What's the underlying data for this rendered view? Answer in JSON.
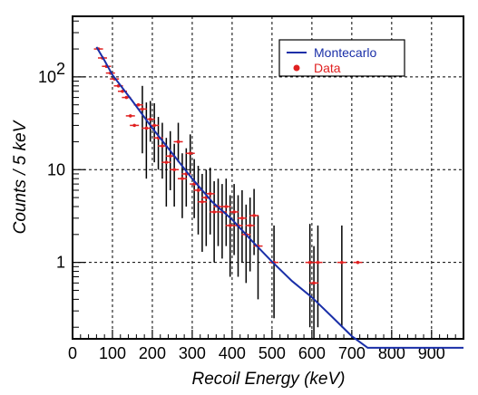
{
  "chart_data": {
    "type": "scatter",
    "xlabel": "Recoil Energy (keV)",
    "ylabel": "Counts / 5 keV",
    "xlim": [
      0,
      980
    ],
    "ylim": [
      0.15,
      450
    ],
    "yscale": "log",
    "grid": true,
    "legend_position": "top-right",
    "xticks": [
      "0",
      "100",
      "200",
      "300",
      "400",
      "500",
      "600",
      "700",
      "800",
      "900"
    ],
    "yticks": [
      {
        "value": 1,
        "label": "1"
      },
      {
        "value": 10,
        "label": "10"
      },
      {
        "value": 100,
        "label": "10",
        "exp": "2"
      }
    ],
    "series": [
      {
        "name": "Montecarlo",
        "kind": "line",
        "color": "#1a2fa8",
        "x": [
          60,
          80,
          100,
          150,
          200,
          250,
          300,
          350,
          400,
          450,
          500,
          550,
          600,
          650,
          700,
          740,
          750,
          980
        ],
        "y": [
          210,
          150,
          105,
          55,
          28,
          15,
          8,
          4.5,
          2.9,
          1.7,
          1.02,
          0.63,
          0.42,
          0.26,
          0.16,
          0.12,
          0.12,
          0.12
        ]
      },
      {
        "name": "Data",
        "kind": "points",
        "color": "#e02020",
        "x": [
          65,
          75,
          85,
          95,
          105,
          115,
          125,
          135,
          145,
          155,
          165,
          175,
          185,
          195,
          205,
          215,
          225,
          235,
          245,
          255,
          265,
          275,
          285,
          295,
          305,
          315,
          325,
          335,
          345,
          355,
          365,
          375,
          385,
          395,
          405,
          415,
          425,
          435,
          445,
          455,
          465,
          505,
          595,
          605,
          615,
          675,
          715
        ],
        "y": [
          200,
          160,
          130,
          110,
          95,
          80,
          70,
          60,
          38,
          30,
          50,
          45,
          28,
          35,
          30,
          22,
          18,
          12,
          14,
          10,
          20,
          8,
          9,
          15,
          7,
          6,
          4.5,
          5,
          5.5,
          3.5,
          4,
          3.5,
          4,
          2.5,
          3.5,
          2.5,
          3,
          2,
          2.5,
          3.2,
          1.5,
          1,
          1,
          0.6,
          1,
          1,
          1
        ],
        "err_low": [
          0,
          0,
          0,
          0,
          0,
          0,
          0,
          0,
          0,
          0,
          0,
          30,
          20,
          15,
          18,
          12,
          10,
          8,
          8,
          6,
          8,
          5,
          5,
          6,
          4,
          4,
          3.2,
          3.5,
          3.5,
          2.5,
          2.5,
          2.4,
          2.5,
          1.8,
          2.3,
          1.8,
          2.0,
          1.4,
          1.7,
          2.0,
          1.1,
          0.75,
          0.8,
          0.48,
          0.8,
          0.8,
          0
        ],
        "err_high": [
          0,
          0,
          0,
          0,
          0,
          0,
          0,
          0,
          0,
          0,
          0,
          35,
          25,
          20,
          22,
          15,
          14,
          10,
          12,
          9,
          12,
          7,
          8,
          9,
          6,
          5,
          4.5,
          5,
          5,
          4,
          4,
          3.5,
          4,
          2.8,
          3.5,
          2.8,
          3.0,
          2.2,
          2.5,
          3.0,
          1.7,
          1.5,
          1.6,
          0.9,
          1.5,
          1.5,
          0
        ]
      }
    ]
  }
}
